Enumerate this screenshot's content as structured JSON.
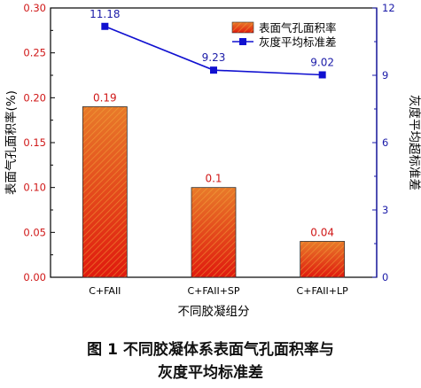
{
  "chart_data": {
    "type": "bar",
    "categories": [
      "C+FAII",
      "C+FAII+SP",
      "C+FAII+LP"
    ],
    "series": [
      {
        "name": "表面气孔面积率",
        "type": "bar",
        "axis": "left",
        "values": [
          0.19,
          0.1,
          0.04
        ],
        "labels": [
          "0.19",
          "0.1",
          "0.04"
        ]
      },
      {
        "name": "灰度平均标准差",
        "type": "line",
        "axis": "right",
        "values": [
          11.18,
          9.23,
          9.02
        ],
        "labels": [
          "11.18",
          "9.23",
          "9.02"
        ]
      }
    ],
    "xlabel": "不同胶凝组分",
    "ylabel": "表面气孔面积率(%)",
    "ylabel_right": "灰度平均超标准差",
    "ylim": [
      0,
      0.3
    ],
    "ylim_right": [
      0,
      12
    ],
    "yticks": [
      "0.00",
      "0.05",
      "0.10",
      "0.15",
      "0.20",
      "0.25",
      "0.30"
    ],
    "yticks_right": [
      "0",
      "3",
      "6",
      "9",
      "12"
    ],
    "legend_position": "top-right",
    "grid": false,
    "colors": {
      "bar_fill": "#e8601c",
      "bar_hatch": "#f2a03d",
      "bar_label": "#d01818",
      "line": "#1010d0",
      "line_label": "#1a1aa8",
      "right_axis": "#1a1aa8"
    }
  },
  "caption": {
    "line1": "图 1   不同胶凝体系表面气孔面积率与",
    "line2": "灰度平均标准差"
  }
}
